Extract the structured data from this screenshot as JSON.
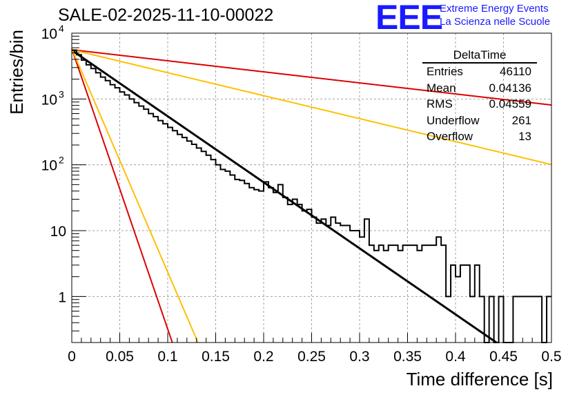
{
  "title": "SALE-02-2025-11-10-00022",
  "logo": {
    "mark": "EEE",
    "line1": "Extreme Energy Events",
    "line2": "La Scienza nelle Scuole"
  },
  "stats": {
    "name": "DeltaTime",
    "rows": [
      {
        "label": "Entries",
        "value": "46110"
      },
      {
        "label": "Mean",
        "value": "0.04136"
      },
      {
        "label": "RMS",
        "value": "0.04559"
      },
      {
        "label": "Underflow",
        "value": "261"
      },
      {
        "label": "Overflow",
        "value": "13"
      }
    ]
  },
  "chart_data": {
    "type": "histogram",
    "title": "SALE-02-2025-11-10-00022",
    "xlabel": "Time difference [s]",
    "ylabel": "Entries/bin",
    "xlim": [
      0,
      0.5
    ],
    "ylim": [
      0.2,
      10000
    ],
    "yscale": "log",
    "grid": true,
    "xticks": [
      0,
      0.05,
      0.1,
      0.15,
      0.2,
      0.25,
      0.3,
      0.35,
      0.4,
      0.45,
      0.5
    ],
    "xtick_labels": [
      "0",
      "0.05",
      "0.1",
      "0.15",
      "0.2",
      "0.25",
      "0.3",
      "0.35",
      "0.4",
      "0.45",
      "0.5"
    ],
    "yticks": [
      1,
      10,
      100,
      1000,
      10000
    ],
    "ytick_labels": [
      {
        "base": "1",
        "exp": ""
      },
      {
        "base": "10",
        "exp": ""
      },
      {
        "base": "10",
        "exp": "2"
      },
      {
        "base": "10",
        "exp": "3"
      },
      {
        "base": "10",
        "exp": "4"
      }
    ],
    "histogram": {
      "bin_width": 0.005,
      "counts": [
        5500,
        4700,
        3900,
        3300,
        2900,
        2500,
        2150,
        1900,
        1650,
        1480,
        1280,
        1150,
        1000,
        880,
        780,
        700,
        600,
        540,
        470,
        420,
        370,
        330,
        290,
        260,
        230,
        205,
        180,
        160,
        140,
        120,
        100,
        85,
        80,
        70,
        60,
        58,
        52,
        45,
        42,
        40,
        55,
        45,
        38,
        50,
        32,
        25,
        30,
        25,
        20,
        21,
        16,
        13,
        15,
        12,
        16,
        13,
        12,
        12,
        10,
        10,
        8,
        15,
        6,
        5,
        6,
        5,
        6,
        6,
        5,
        6,
        6,
        6,
        5,
        6,
        6,
        6,
        8,
        6,
        1,
        3,
        2,
        3,
        3,
        1,
        3,
        1,
        0,
        1,
        0,
        1,
        0,
        0.2,
        1,
        1,
        1,
        1,
        1,
        1,
        0.2,
        1
      ],
      "color": "#000000"
    },
    "fits": [
      {
        "name": "black-fit",
        "A": 5500,
        "tau": 0.0433,
        "color": "#000000"
      },
      {
        "name": "red-long",
        "A": 5600,
        "tau": 0.2586,
        "color": "#dd0000"
      },
      {
        "name": "orange-long",
        "A": 5600,
        "tau": 0.1245,
        "color": "#ffc000"
      },
      {
        "name": "red-short",
        "A": 5800,
        "tau": 0.0102,
        "color": "#dd0000"
      },
      {
        "name": "orange-short",
        "A": 5800,
        "tau": 0.0128,
        "color": "#ffc000"
      }
    ]
  }
}
